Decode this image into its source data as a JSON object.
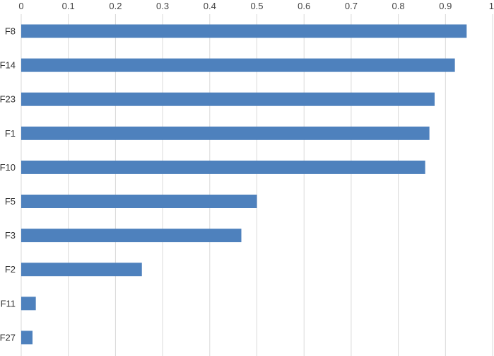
{
  "chart_data": {
    "type": "bar",
    "orientation": "horizontal",
    "categories": [
      "F8",
      "F14",
      "F23",
      "F1",
      "F10",
      "F5",
      "F3",
      "F2",
      "F11",
      "F27"
    ],
    "values": [
      0.945,
      0.92,
      0.877,
      0.866,
      0.857,
      0.5,
      0.467,
      0.256,
      0.031,
      0.024
    ],
    "x_ticks": [
      "0",
      "0.1",
      "0.2",
      "0.3",
      "0.4",
      "0.5",
      "0.6",
      "0.7",
      "0.8",
      "0.9",
      "1"
    ],
    "xlim": [
      0,
      1
    ],
    "axis_position": "top",
    "grid": true,
    "bar_color": "#4e81bd",
    "grid_color": "#d9d9d9",
    "title": "",
    "xlabel": "",
    "ylabel": ""
  }
}
